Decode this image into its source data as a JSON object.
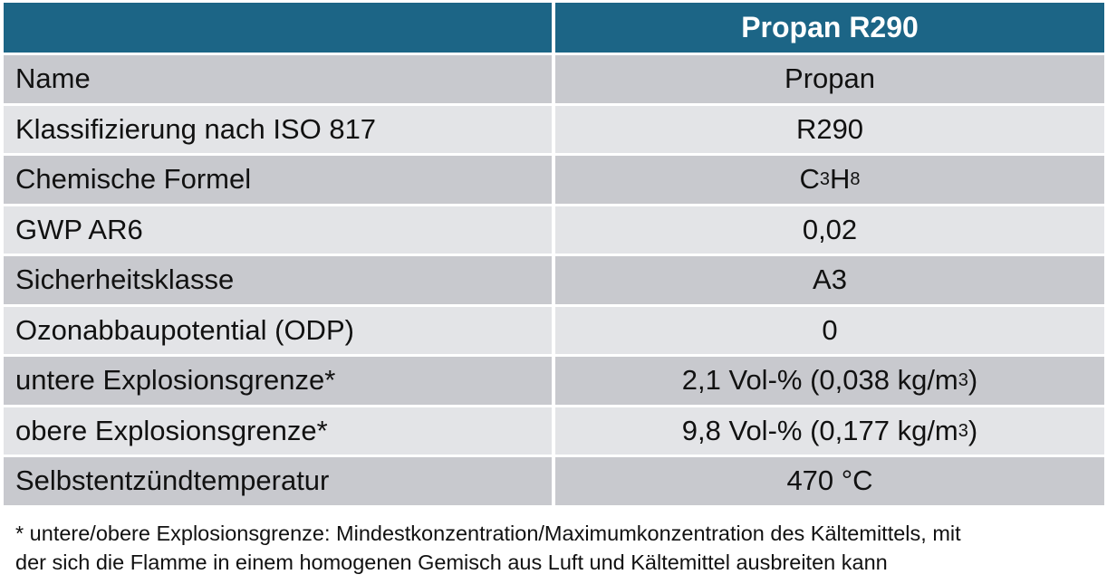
{
  "header": {
    "left": "",
    "right": "Propan R290"
  },
  "rows": [
    {
      "label": "Name",
      "value": "Propan"
    },
    {
      "label": "Klassifizierung nach ISO 817",
      "value": "R290"
    },
    {
      "label": "Chemische Formel",
      "value_parts": {
        "a": "C",
        "a_sub": "3",
        "b": "H",
        "b_sub": "8"
      }
    },
    {
      "label": "GWP AR6",
      "value": "0,02"
    },
    {
      "label": "Sicherheitsklasse",
      "value": "A3"
    },
    {
      "label": "Ozonabbaupotential (ODP)",
      "value": "0"
    },
    {
      "label": "untere Explosionsgrenze*",
      "value_main": "2,1 Vol-% (0,038 kg/m",
      "value_sup": "3",
      "value_end": ")"
    },
    {
      "label": "obere Explosionsgrenze*",
      "value_main": "9,8 Vol-% (0,177 kg/m",
      "value_sup": "3",
      "value_end": ")"
    },
    {
      "label": "Selbstentzündtemperatur",
      "value": "470 °C"
    }
  ],
  "footnote": {
    "line1": "* untere/obere Explosionsgrenze: Mindestkonzentration/Maximumkonzentration des Kältemittels, mit",
    "line2": "der sich die Flamme in einem homogenen Gemisch aus Luft und Kältemittel ausbreiten kann"
  },
  "colors": {
    "header_bg": "#1c6586",
    "row_dark": "#c8c9ce",
    "row_light": "#e3e4e7"
  }
}
